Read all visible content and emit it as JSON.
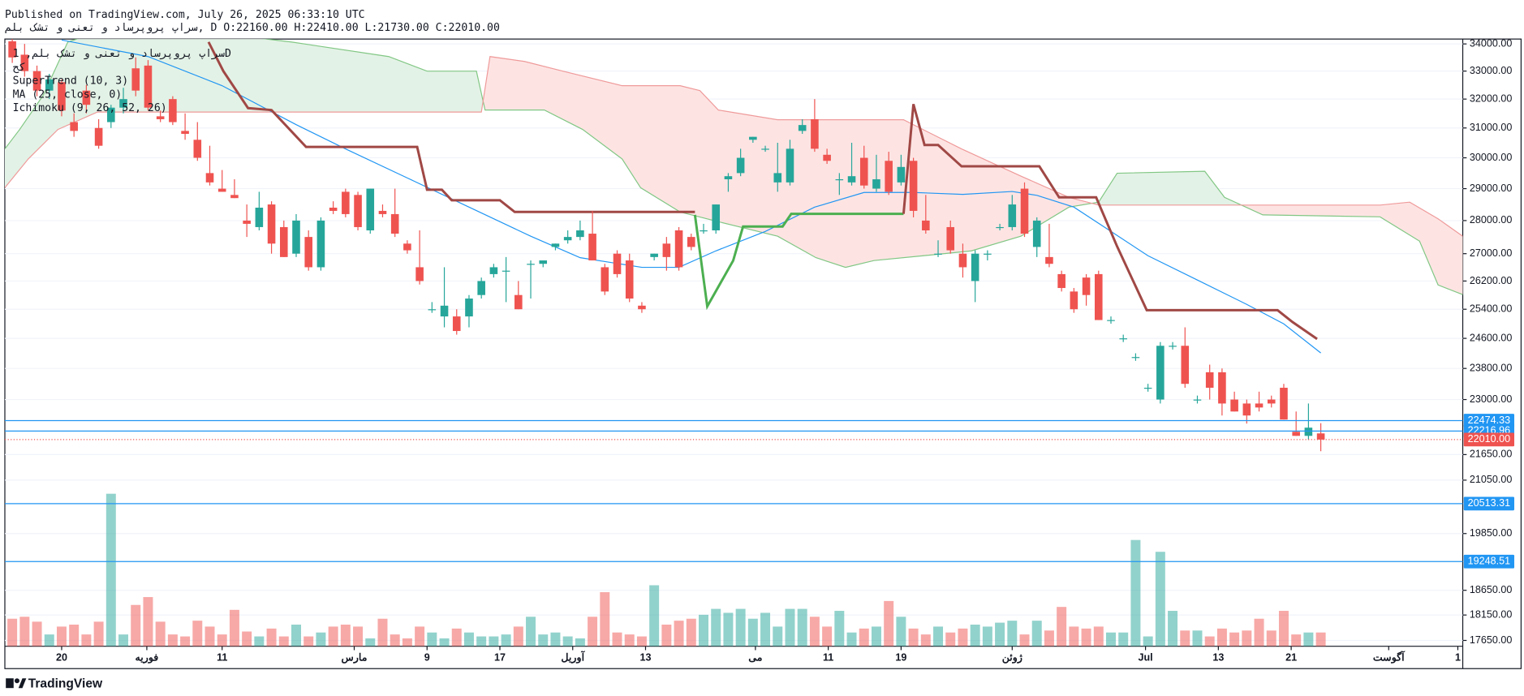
{
  "header": {
    "published": "Published on TradingView.com, July 26, 2025 06:33:10 UTC",
    "symbol_line": "سراپ پروپرساد و تعنی و تشک بلم, D O:22160.00 H:22410.00 L:21730.00 C:22010.00"
  },
  "footer": {
    "brand": "TradingView"
  },
  "chart_data": {
    "type": "candlestick",
    "legend": {
      "symbol": "سراپ پروپرساد و تعنی و تشک بلم, 1D",
      "exchange": "کح"
    },
    "log": true,
    "grid": true,
    "up_color": "#26a69a",
    "down_color": "#ef5350",
    "xlim": [
      -0.6,
      117.5
    ],
    "ylim": [
      17537,
      34183
    ],
    "yticks": [
      {
        "value": 34000,
        "label": "34000.00"
      },
      {
        "value": 33000,
        "label": "33000.00"
      },
      {
        "value": 32000,
        "label": "32000.00"
      },
      {
        "value": 31000,
        "label": "31000.00"
      },
      {
        "value": 30000,
        "label": "30000.00"
      },
      {
        "value": 29000,
        "label": "29000.00"
      },
      {
        "value": 28000,
        "label": "28000.00"
      },
      {
        "value": 27000,
        "label": "27000.00"
      },
      {
        "value": 26200,
        "label": "26200.00"
      },
      {
        "value": 25400,
        "label": "25400.00"
      },
      {
        "value": 24600,
        "label": "24600.00"
      },
      {
        "value": 23800,
        "label": "23800.00"
      },
      {
        "value": 23000,
        "label": "23000.00"
      },
      {
        "value": 21650,
        "label": "21650.00"
      },
      {
        "value": 21050,
        "label": "21050.00"
      },
      {
        "value": 19850,
        "label": "19850.00"
      },
      {
        "value": 18650,
        "label": "18650.00"
      },
      {
        "value": 18150,
        "label": "18150.00"
      },
      {
        "value": 17650,
        "label": "17650.00"
      }
    ],
    "xticks": [
      {
        "value": 4,
        "label": "20"
      },
      {
        "value": 10.9,
        "label": "فوریه"
      },
      {
        "value": 17,
        "label": "11"
      },
      {
        "value": 27.7,
        "label": "مارس"
      },
      {
        "value": 33.6,
        "label": "9"
      },
      {
        "value": 39.5,
        "label": "17"
      },
      {
        "value": 45.4,
        "label": "آوریل"
      },
      {
        "value": 51.3,
        "label": "13"
      },
      {
        "value": 60.2,
        "label": "می"
      },
      {
        "value": 66.1,
        "label": "11"
      },
      {
        "value": 72,
        "label": "19"
      },
      {
        "value": 81,
        "label": "ژوئن"
      },
      {
        "value": 91.8,
        "label": "Jul"
      },
      {
        "value": 97.7,
        "label": "13"
      },
      {
        "value": 103.6,
        "label": "21"
      },
      {
        "value": 111.5,
        "label": "آگوست"
      },
      {
        "value": 117.1,
        "label": "1"
      }
    ],
    "open": [
      34100,
      33600,
      33000,
      32300,
      32600,
      31200,
      32300,
      31000,
      31200,
      31700,
      33100,
      33200,
      31400,
      32000,
      30900,
      30600,
      29500,
      29000,
      28800,
      28000,
      27800,
      28500,
      27800,
      27000,
      27500,
      26600,
      28400,
      28900,
      28800,
      27700,
      28300,
      28200,
      27300,
      26600,
      25400,
      25200,
      25200,
      25200,
      25800,
      26400,
      26500,
      25800,
      26700,
      26700,
      27200,
      27400,
      27500,
      27600,
      26600,
      27000,
      26800,
      25500,
      26900,
      27300,
      27700,
      27500,
      27700,
      27700,
      29300,
      29500,
      30600,
      30300,
      29200,
      29200,
      30900,
      31300,
      30100,
      29300,
      29200,
      30000,
      29000,
      29900,
      29200,
      29900,
      28000,
      27000,
      27800,
      27000,
      26200,
      27000,
      27800,
      27800,
      29000,
      27200,
      26900,
      26400,
      25900,
      26300,
      26400,
      25100,
      24600,
      24100,
      23300,
      23000,
      24400,
      24400,
      23000,
      23700,
      23700,
      23000,
      22900,
      22900,
      23000,
      23300,
      22200,
      22100,
      22160
    ],
    "high": [
      34200,
      34000,
      33200,
      32900,
      32700,
      31500,
      32500,
      31300,
      31800,
      32400,
      33500,
      33400,
      31600,
      32100,
      31500,
      31200,
      30400,
      29600,
      29300,
      28500,
      28900,
      28600,
      28000,
      28200,
      27700,
      28100,
      28600,
      29000,
      28900,
      29000,
      28500,
      29000,
      27400,
      27700,
      25600,
      26600,
      25400,
      25800,
      26300,
      26700,
      26900,
      26200,
      26800,
      26800,
      27300,
      27700,
      28000,
      28300,
      26700,
      27100,
      27000,
      25600,
      27000,
      27500,
      27800,
      27600,
      27900,
      28500,
      29500,
      30300,
      30700,
      30400,
      30500,
      30600,
      31300,
      32000,
      30300,
      29500,
      30500,
      30400,
      30100,
      30200,
      30100,
      30000,
      28800,
      27400,
      28000,
      27300,
      27100,
      27100,
      27900,
      28800,
      29200,
      28100,
      27900,
      26500,
      26000,
      26400,
      26500,
      25200,
      24700,
      24200,
      23400,
      24500,
      24500,
      24900,
      23100,
      23900,
      23800,
      23200,
      23000,
      23200,
      23100,
      23400,
      22700,
      22900,
      22410
    ],
    "low": [
      33300,
      32800,
      32100,
      32000,
      31400,
      30700,
      31500,
      30300,
      31000,
      31500,
      32100,
      31600,
      31200,
      31100,
      30600,
      29900,
      29100,
      28900,
      28700,
      27500,
      27700,
      27000,
      26900,
      26900,
      26500,
      26500,
      28200,
      28100,
      27700,
      27600,
      28100,
      27500,
      27000,
      26100,
      25300,
      24900,
      24700,
      24900,
      25700,
      26300,
      25600,
      25400,
      25700,
      26600,
      27100,
      27300,
      27400,
      26800,
      25800,
      26300,
      25600,
      25300,
      26800,
      26500,
      26500,
      27100,
      27600,
      27600,
      28900,
      29400,
      30500,
      30200,
      28900,
      29100,
      30800,
      30200,
      29800,
      28800,
      29100,
      29000,
      28900,
      28800,
      29100,
      28100,
      27600,
      26900,
      27000,
      26300,
      25600,
      26800,
      27700,
      27700,
      27500,
      26900,
      26600,
      25900,
      25300,
      25500,
      25100,
      25000,
      24500,
      24000,
      23200,
      22900,
      24300,
      23300,
      22900,
      23000,
      22600,
      22700,
      22400,
      22700,
      22800,
      22500,
      22100,
      22000,
      21730
    ],
    "close": [
      33500,
      33000,
      32300,
      32700,
      31600,
      30900,
      31800,
      30400,
      31700,
      32000,
      32300,
      31700,
      31300,
      31200,
      30800,
      30000,
      29200,
      28900,
      28700,
      27900,
      28400,
      27300,
      26900,
      28000,
      26600,
      28000,
      28300,
      28200,
      27800,
      29000,
      28200,
      27600,
      27100,
      26200,
      25400,
      25500,
      24800,
      25700,
      26200,
      26600,
      26500,
      25400,
      26700,
      26800,
      27300,
      27500,
      27700,
      26800,
      25900,
      26400,
      25700,
      25400,
      27000,
      26900,
      26600,
      27200,
      27700,
      28500,
      29400,
      30000,
      30700,
      30300,
      29500,
      30300,
      31100,
      30300,
      29900,
      29300,
      29400,
      29100,
      29300,
      28900,
      29700,
      28300,
      27700,
      27000,
      27100,
      26600,
      27000,
      27000,
      27800,
      28500,
      27600,
      28000,
      26700,
      26000,
      25400,
      25800,
      25100,
      25100,
      24600,
      24100,
      23300,
      24400,
      24400,
      23400,
      23000,
      23300,
      22900,
      22700,
      22600,
      22800,
      22900,
      22500,
      22100,
      22300,
      22010
    ],
    "volume": [
      28,
      30,
      25,
      12,
      20,
      22,
      12,
      25,
      155,
      12,
      42,
      50,
      25,
      12,
      10,
      26,
      20,
      12,
      37,
      15,
      10,
      18,
      10,
      22,
      10,
      14,
      20,
      22,
      20,
      8,
      28,
      12,
      8,
      20,
      14,
      8,
      18,
      14,
      10,
      10,
      12,
      20,
      30,
      12,
      14,
      10,
      8,
      30,
      55,
      14,
      12,
      10,
      62,
      22,
      26,
      28,
      32,
      38,
      34,
      38,
      28,
      34,
      20,
      38,
      38,
      30,
      20,
      36,
      14,
      18,
      20,
      46,
      30,
      18,
      12,
      20,
      14,
      18,
      22,
      20,
      24,
      26,
      12,
      26,
      16,
      40,
      20,
      18,
      20,
      14,
      14,
      108,
      10,
      96,
      36,
      16,
      16,
      10,
      18,
      14,
      16,
      28,
      16,
      36,
      12,
      14,
      14
    ],
    "ma": {
      "label": "MA (25, close, 0)",
      "color": "#2196f3",
      "x": [
        4,
        11,
        17,
        23,
        27,
        32,
        37,
        42,
        46,
        51,
        54,
        57,
        61,
        65,
        69,
        73,
        77,
        81,
        83,
        86,
        89,
        92,
        96,
        100,
        103,
        106
      ],
      "values": [
        34146,
        33531,
        32474,
        31113,
        30295,
        29343,
        28417,
        27522,
        26882,
        26597,
        26597,
        27083,
        27668,
        28417,
        28879,
        28879,
        28818,
        28910,
        28787,
        28417,
        27668,
        26939,
        26229,
        25536,
        24995,
        24208
      ]
    },
    "supertrend": {
      "label": "SuperTrend (10, 3)",
      "lines": [
        {
          "color": "#a04845",
          "x": [
            15.9,
            17.1,
            19.1,
            21,
            23.8,
            32.8,
            33.6,
            34.8,
            35.6,
            39.5,
            40.7,
            55.3
          ],
          "values": [
            34073,
            32998,
            31684,
            31616,
            30360,
            30360,
            28966,
            28966,
            28633,
            28633,
            28266,
            28266
          ]
        },
        {
          "color": "#4caf50",
          "x": [
            55.3,
            56.3,
            58.4,
            59.2,
            62.4,
            63.1,
            72.2
          ],
          "values": [
            28176,
            25480,
            26796,
            27818,
            27818,
            28207,
            28207
          ]
        },
        {
          "color": "#a04845",
          "x": [
            72.2,
            73,
            73.9,
            75,
            76.9,
            83.2,
            84.8,
            87.8,
            89.5,
            91.9,
            102.5,
            103.7,
            105.7
          ],
          "values": [
            28207,
            31822,
            30425,
            30425,
            29720,
            29720,
            28724,
            28724,
            27215,
            25373,
            25373,
            25048,
            24584
          ]
        }
      ]
    },
    "ichimoku": {
      "label": "Ichimoku (9, 26, 52, 26)",
      "fill_up": "#e3f2e6",
      "fill_down": "#fde4e3",
      "span_a": {
        "color": "#81c784",
        "x": [
          -0.6,
          0.6,
          2.5,
          4.5,
          6.9,
          15.9,
          22.6,
          30.5,
          33.6,
          37.6,
          38.3,
          43.1,
          46.2,
          49.4,
          50.9,
          54.1,
          57.2,
          62,
          65.1,
          67.5,
          69.8,
          73.8,
          77.7,
          81.7,
          85.6,
          88,
          89.5,
          96.6,
          98.2,
          101.3,
          110.8,
          114,
          115.5,
          117.5
        ],
        "values": [
          30295,
          30950,
          32129,
          34073,
          34440,
          34440,
          34073,
          33531,
          32998,
          32998,
          31617,
          31617,
          30950,
          29963,
          29030,
          28266,
          27966,
          27522,
          26882,
          26597,
          26796,
          26939,
          27083,
          27522,
          28417,
          28573,
          29496,
          29560,
          28724,
          28176,
          28115,
          27375,
          26087,
          25812
        ]
      },
      "span_b": {
        "color": "#ef9a9a",
        "x": [
          -0.6,
          1.3,
          3.7,
          6.9,
          38,
          38.7,
          41.5,
          44.6,
          49.4,
          54.1,
          55.7,
          57.2,
          62,
          72.2,
          76.9,
          81.7,
          85.6,
          88,
          110.8,
          113.2,
          115.5,
          117.5
        ],
        "values": [
          29030,
          29963,
          30950,
          31548,
          31548,
          33531,
          33352,
          32998,
          32474,
          32474,
          32300,
          31617,
          31281,
          31281,
          30295,
          29403,
          28724,
          28481,
          28481,
          28573,
          28055,
          27522
        ]
      }
    },
    "price_lines": [
      {
        "value": 22474.33,
        "label": "22474.33",
        "color": "#2196f3",
        "dashed": false
      },
      {
        "value": 22216.96,
        "label": "22216.96",
        "color": "#2196f3",
        "dashed": false
      },
      {
        "value": 22010.0,
        "label": "22010.00",
        "color": "#ef5350",
        "dashed": true
      },
      {
        "value": 20513.31,
        "label": "20513.31",
        "color": "#2196f3",
        "dashed": false
      },
      {
        "value": 19248.51,
        "label": "19248.51",
        "color": "#2196f3",
        "dashed": false
      }
    ]
  }
}
